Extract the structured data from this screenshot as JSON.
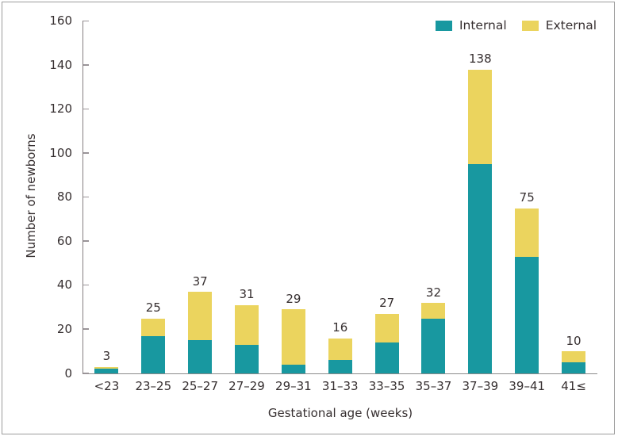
{
  "chart_data": {
    "type": "bar",
    "stacked": true,
    "title": "",
    "xlabel": "Gestational age (weeks)",
    "ylabel": "Number of newborns",
    "categories": [
      "<23",
      "23–25",
      "25–27",
      "27–29",
      "29–31",
      "31–33",
      "33–35",
      "35–37",
      "37–39",
      "39–41",
      "41≤"
    ],
    "series": [
      {
        "name": "Internal",
        "color": "#1898A0",
        "values": [
          2,
          17,
          15,
          13,
          4,
          6,
          14,
          25,
          95,
          53,
          5
        ]
      },
      {
        "name": "External",
        "color": "#EBD45E",
        "values": [
          1,
          8,
          22,
          18,
          25,
          10,
          13,
          7,
          43,
          22,
          5
        ]
      }
    ],
    "totals": [
      3,
      25,
      37,
      31,
      29,
      16,
      27,
      32,
      138,
      75,
      10
    ],
    "ylim": [
      0,
      160
    ],
    "yticks": [
      0,
      20,
      40,
      60,
      80,
      100,
      120,
      140,
      160
    ],
    "grid": false,
    "legend_position": "top-right"
  },
  "legend": {
    "items": [
      {
        "label": "Internal",
        "color": "#1898A0"
      },
      {
        "label": "External",
        "color": "#EBD45E"
      }
    ]
  },
  "colors": {
    "internal": "#1898A0",
    "external": "#EBD45E",
    "text": "#362f30",
    "axis": "#857f82",
    "frame_border": "#9c9c9c",
    "background": "#ffffff"
  }
}
